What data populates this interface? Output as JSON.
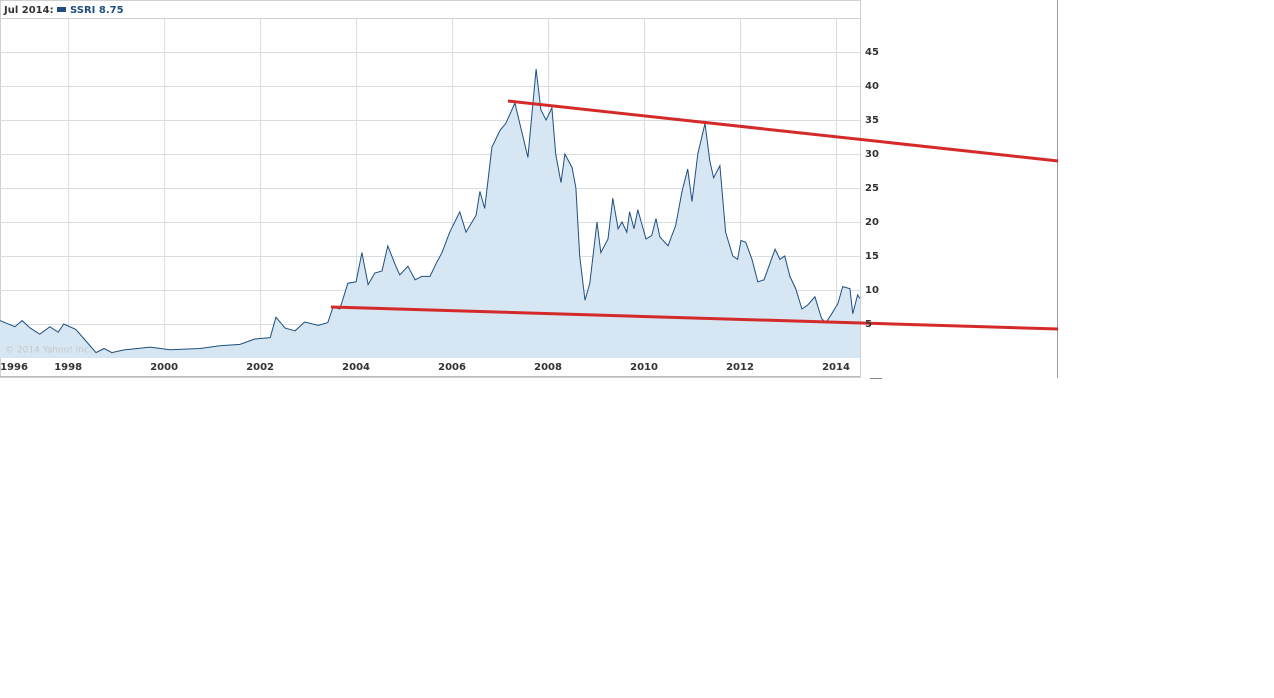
{
  "chart_data": {
    "type": "area",
    "date_label": "Jul 2014:",
    "copyright": "© 2014 Yahoo! Inc.",
    "x": [
      1996.58,
      1996.89,
      1997.04,
      1997.21,
      1997.41,
      1997.62,
      1997.79,
      1997.91,
      1998.16,
      1998.37,
      1998.58,
      1998.75,
      1998.91,
      1999.18,
      1999.71,
      2000.12,
      2000.75,
      2001.16,
      2001.58,
      2001.89,
      2002.21,
      2002.33,
      2002.52,
      2002.73,
      2002.93,
      2003.21,
      2003.41,
      2003.52,
      2003.66,
      2003.83,
      2004.0,
      2004.12,
      2004.25,
      2004.39,
      2004.54,
      2004.66,
      2004.81,
      2004.91,
      2005.08,
      2005.23,
      2005.37,
      2005.54,
      2005.66,
      2005.79,
      2005.95,
      2006.16,
      2006.29,
      2006.5,
      2006.58,
      2006.68,
      2006.83,
      2007.0,
      2007.12,
      2007.31,
      2007.58,
      2007.75,
      2007.85,
      2007.96,
      2008.08,
      2008.16,
      2008.27,
      2008.35,
      2008.5,
      2008.58,
      2008.66,
      2008.77,
      2008.87,
      2009.02,
      2009.1,
      2009.25,
      2009.35,
      2009.46,
      2009.54,
      2009.64,
      2009.7,
      2009.79,
      2009.87,
      2010.04,
      2010.16,
      2010.25,
      2010.33,
      2010.5,
      2010.66,
      2010.79,
      2010.91,
      2011.0,
      2011.12,
      2011.27,
      2011.37,
      2011.45,
      2011.58,
      2011.7,
      2011.85,
      2011.95,
      2012.02,
      2012.12,
      2012.25,
      2012.37,
      2012.5,
      2012.73,
      2012.83,
      2012.93,
      2013.04,
      2013.16,
      2013.29,
      2013.41,
      2013.56,
      2013.7,
      2013.79,
      2013.91,
      2014.04,
      2014.14,
      2014.29,
      2014.35,
      2014.45,
      2014.5
    ],
    "series": [
      {
        "name": "SSRI",
        "color": "#1f4f7f",
        "fill": "#d6e6f2",
        "values": [
          5.5,
          4.6,
          5.5,
          4.4,
          3.5,
          4.6,
          3.8,
          5.0,
          4.2,
          2.5,
          0.8,
          1.4,
          0.8,
          1.2,
          1.6,
          1.2,
          1.4,
          1.8,
          2.0,
          2.8,
          3.0,
          6.0,
          4.4,
          4.0,
          5.3,
          4.8,
          5.2,
          7.5,
          7.2,
          11,
          11.2,
          15.5,
          10.8,
          12.5,
          12.8,
          16.5,
          13.8,
          12.2,
          13.5,
          11.5,
          12.0,
          12.0,
          13.8,
          15.5,
          18.5,
          21.5,
          18.5,
          21,
          24.5,
          22.0,
          31.0,
          33.5,
          34.5,
          37.5,
          29.5,
          42.5,
          36.5,
          35,
          36.8,
          30,
          25.8,
          30,
          28,
          25,
          15,
          8.5,
          11,
          20,
          15.5,
          17.5,
          23.5,
          19,
          20,
          18.5,
          21.5,
          19,
          21.8,
          17.5,
          18,
          20.5,
          17.8,
          16.5,
          19.5,
          24.5,
          27.8,
          23,
          30,
          34.5,
          29,
          26.5,
          28.3,
          18.5,
          15,
          14.5,
          17.3,
          17,
          14.5,
          11.2,
          11.5,
          16,
          14.5,
          15,
          12,
          10.2,
          7.2,
          7.8,
          9.0,
          5.8,
          5.2,
          6.5,
          8,
          10.5,
          10.2,
          6.5,
          9.3,
          8.75
        ]
      }
    ],
    "xlim": [
      1996.58,
      2014.5
    ],
    "xticks": [
      1996,
      1998,
      2000,
      2002,
      2004,
      2006,
      2008,
      2010,
      2012,
      2014
    ],
    "ylim": [
      0,
      50
    ],
    "yticks": [
      5,
      10,
      15,
      20,
      25,
      30,
      35,
      40,
      45
    ],
    "grid": true
  }
}
